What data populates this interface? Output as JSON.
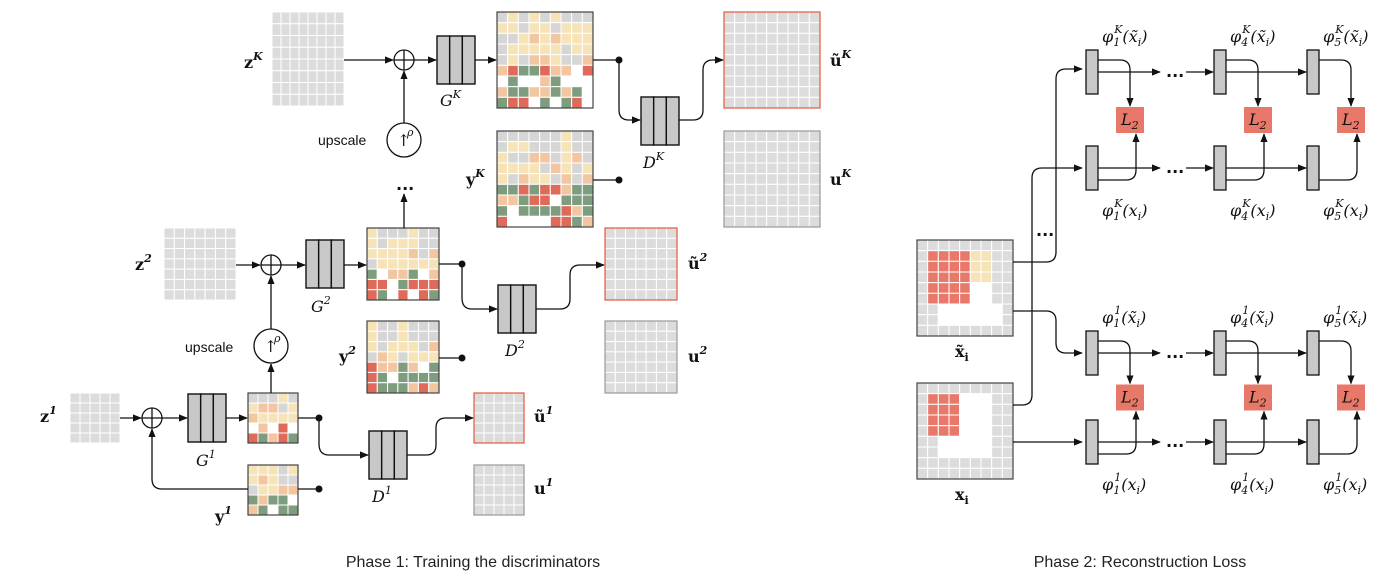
{
  "colors": {
    "grid_cell": "#dcdcdc",
    "grid_line": "#ffffff",
    "fake_border": "#e05a3a",
    "real_border": "#9a9a9a",
    "network_block": "#c8c8c8",
    "loss_box": "#e8786a",
    "heat_light": "#f6e3b8",
    "heat_peach": "#f3c6a2",
    "heat_green": "#7e9c7e",
    "heat_red": "#e06a5a",
    "heat_gray": "#d6d6d6"
  },
  "captions": {
    "phase1": "Phase 1: Training the discriminators",
    "phase2": "Phase 2: Reconstruction Loss"
  },
  "phase1": {
    "noise_labels": [
      {
        "base": "z",
        "sup": "K"
      },
      {
        "base": "z",
        "sup": "2"
      },
      {
        "base": "z",
        "sup": "1"
      }
    ],
    "generator_labels": [
      {
        "base": "G",
        "sup": "K"
      },
      {
        "base": "G",
        "sup": "2"
      },
      {
        "base": "G",
        "sup": "1"
      }
    ],
    "discriminator_labels": [
      {
        "base": "D",
        "sup": "K"
      },
      {
        "base": "D",
        "sup": "2"
      },
      {
        "base": "D",
        "sup": "1"
      }
    ],
    "real_labels": [
      {
        "base": "y",
        "sup": "K"
      },
      {
        "base": "y",
        "sup": "2"
      },
      {
        "base": "y",
        "sup": "1"
      }
    ],
    "fake_output_labels": [
      {
        "base": "ũ",
        "sup": "K"
      },
      {
        "base": "ũ",
        "sup": "2"
      },
      {
        "base": "ũ",
        "sup": "1"
      }
    ],
    "real_output_labels": [
      {
        "base": "u",
        "sup": "K"
      },
      {
        "base": "u",
        "sup": "2"
      },
      {
        "base": "u",
        "sup": "1"
      }
    ],
    "upscale_label": "upscale",
    "upscale_symbol": "↑",
    "upscale_sup": "ρ",
    "ellipsis": "..."
  },
  "phase2": {
    "input_labels": [
      {
        "base": "x̃",
        "sub": "i"
      },
      {
        "base": "x",
        "sub": "i"
      }
    ],
    "feature_labels_top_K": [
      "φ",
      "φ",
      "φ"
    ],
    "feature_subs": [
      "1",
      "4",
      "5"
    ],
    "scale_K": "K",
    "scale_1": "1",
    "arg_fake": "(x̃",
    "arg_real": "(x",
    "arg_sub": "i",
    "arg_close": ")",
    "loss_label": "L",
    "loss_sub": "2",
    "ellipsis": "..."
  }
}
